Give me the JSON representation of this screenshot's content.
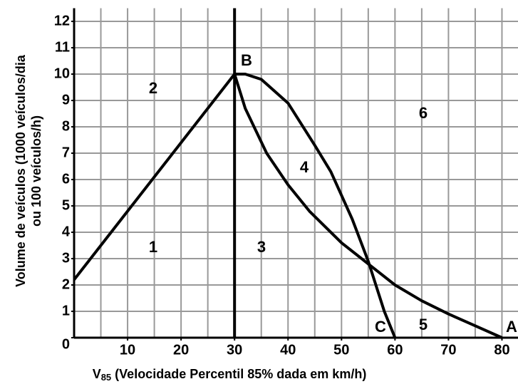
{
  "chart_data": {
    "type": "line",
    "xlabel": [
      "V",
      "85",
      " (Velocidade Percentil 85% dada em km/h)"
    ],
    "ylabel": [
      "Volume de veículos (1000 veículos/dia",
      "ou 100 veículos/h)"
    ],
    "xlim": [
      0,
      83
    ],
    "ylim": [
      0,
      12.5
    ],
    "xticks": [
      10,
      20,
      30,
      40,
      50,
      60,
      70,
      80
    ],
    "yticks": [
      0,
      1,
      2,
      3,
      4,
      5,
      6,
      7,
      8,
      9,
      10,
      11,
      12
    ],
    "xgrid": [
      5,
      10,
      15,
      20,
      25,
      30,
      35,
      40,
      45,
      50,
      55,
      60,
      65,
      70,
      75,
      80
    ],
    "grid": true,
    "series": [
      {
        "color": "#000000",
        "x": [
          0,
          30
        ],
        "values": [
          2.2,
          10
        ]
      },
      {
        "color": "#000000",
        "x": [
          30,
          30
        ],
        "values": [
          0,
          12.5
        ]
      },
      {
        "color": "#000000",
        "x": [
          30,
          32,
          36,
          40,
          44,
          50,
          55,
          60,
          65,
          70,
          75,
          80
        ],
        "values": [
          10,
          8.7,
          7,
          5.8,
          4.8,
          3.6,
          2.8,
          2.0,
          1.4,
          0.9,
          0.45,
          0
        ]
      },
      {
        "color": "#000000",
        "x": [
          30,
          32,
          35,
          40,
          45,
          48,
          52,
          55,
          58,
          60
        ],
        "values": [
          10,
          10,
          9.8,
          8.9,
          7.3,
          6.3,
          4.5,
          2.9,
          1.0,
          0
        ]
      }
    ],
    "annotations": [
      "1",
      "2",
      "3",
      "4",
      "5",
      "6",
      "B",
      "C",
      "A"
    ]
  }
}
